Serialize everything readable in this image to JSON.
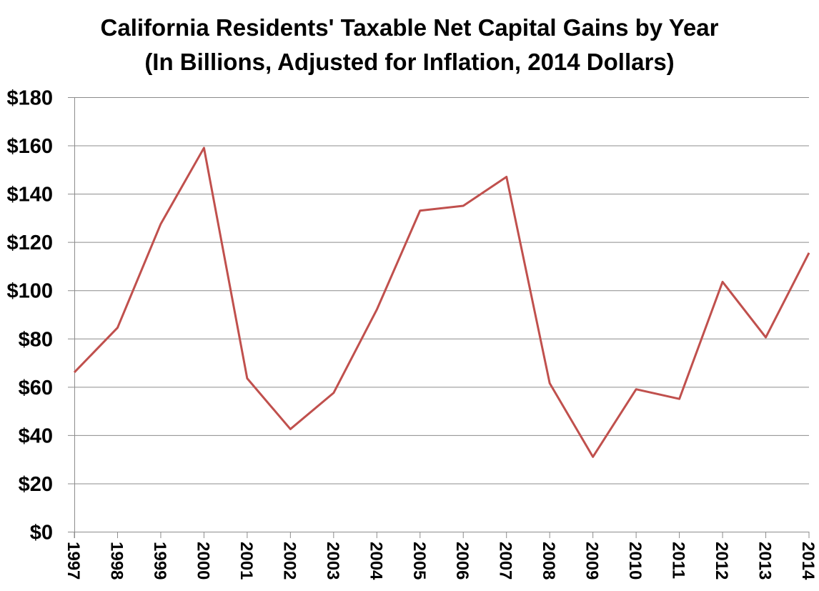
{
  "chart_data": {
    "type": "line",
    "title": "California Residents' Taxable Net Capital Gains by Year",
    "subtitle": "(In Billions, Adjusted for Inflation, 2014 Dollars)",
    "xlabel": "",
    "ylabel": "",
    "x": [
      "1997",
      "1998",
      "1999",
      "2000",
      "2001",
      "2002",
      "2003",
      "2004",
      "2005",
      "2006",
      "2007",
      "2008",
      "2009",
      "2010",
      "2011",
      "2012",
      "2013",
      "2014"
    ],
    "series": [
      {
        "values": [
          66,
          84.5,
          127.5,
          159,
          63.5,
          42.5,
          57.5,
          92,
          133,
          135,
          147,
          61.5,
          31,
          59,
          55,
          103.5,
          80.5,
          115.5
        ],
        "color": "#c0504d"
      }
    ],
    "ylim": [
      0,
      180
    ],
    "yticks": [
      0,
      20,
      40,
      60,
      80,
      100,
      120,
      140,
      160,
      180
    ],
    "ytick_labels": [
      "$0",
      "$20",
      "$40",
      "$60",
      "$80",
      "$100",
      "$120",
      "$140",
      "$160",
      "$180"
    ],
    "grid": "horizontal",
    "legend": "none"
  }
}
